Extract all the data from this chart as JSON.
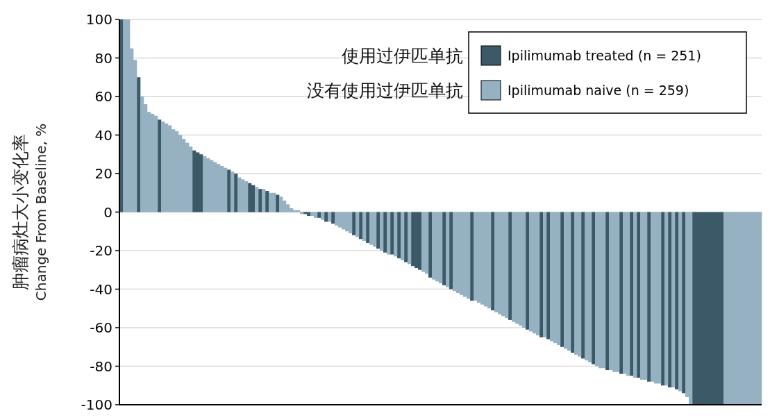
{
  "chart_data": {
    "type": "bar",
    "ylabel": "肿瘤病灶大小变化率\nChange From Baseline, %",
    "categories": [
      null,
      null,
      null,
      null,
      null,
      null,
      null,
      null,
      null,
      null,
      null,
      null,
      null,
      null,
      null,
      null,
      null,
      null,
      null,
      null,
      null,
      null,
      null,
      null,
      null,
      null,
      null,
      null,
      null,
      null,
      null,
      null,
      null,
      null,
      null,
      null,
      null,
      null,
      null,
      null,
      null,
      null,
      null,
      null,
      null,
      null,
      null,
      null,
      null,
      null,
      null,
      null,
      null,
      null,
      null,
      null,
      null,
      null,
      null,
      null,
      null,
      null,
      null,
      null,
      null,
      null,
      null,
      null,
      null,
      null,
      null,
      null,
      null,
      null,
      null,
      null,
      null,
      null,
      null,
      null,
      null,
      null,
      null,
      null,
      null,
      null,
      null,
      null,
      null,
      null,
      null,
      null,
      null,
      null,
      null,
      null,
      null,
      null,
      null,
      null,
      null,
      null,
      null,
      null,
      null,
      null,
      null,
      null,
      null,
      null,
      null,
      null,
      null,
      null,
      null,
      null,
      null,
      null,
      null,
      null,
      null,
      null,
      null,
      null,
      null,
      null,
      null,
      null,
      null,
      null,
      null,
      null,
      null,
      null,
      null,
      null,
      null,
      null,
      null,
      null,
      null,
      null,
      null,
      null,
      null,
      null,
      null,
      null,
      null,
      null,
      null,
      null,
      null,
      null,
      null,
      null,
      null,
      null,
      null,
      null,
      null,
      null,
      null,
      null,
      null,
      null,
      null,
      null,
      null,
      null,
      null,
      null,
      null,
      null,
      null,
      null,
      null,
      null,
      null,
      null,
      null,
      null,
      null,
      null,
      null
    ],
    "series": [
      {
        "name": "Ipilimumab treated (n = 251)",
        "color": "#3b5966",
        "values": [
          100,
          null,
          null,
          null,
          null,
          70,
          null,
          null,
          null,
          null,
          null,
          48,
          null,
          null,
          null,
          null,
          null,
          null,
          null,
          null,
          null,
          32,
          31,
          30,
          null,
          null,
          null,
          null,
          null,
          null,
          null,
          22,
          null,
          20,
          null,
          null,
          null,
          15,
          14,
          null,
          12,
          null,
          11,
          null,
          null,
          9,
          null,
          null,
          null,
          null,
          null,
          null,
          null,
          -1,
          -2,
          null,
          null,
          -3,
          null,
          -5,
          null,
          -6,
          null,
          null,
          null,
          null,
          null,
          -12,
          null,
          -14,
          null,
          -16,
          null,
          null,
          -19,
          null,
          -21,
          null,
          -22,
          null,
          -24,
          null,
          -26,
          null,
          -28,
          -29,
          -30,
          null,
          null,
          -34,
          null,
          null,
          null,
          -38,
          null,
          -40,
          null,
          null,
          null,
          null,
          null,
          -46,
          null,
          null,
          null,
          null,
          null,
          -51,
          null,
          null,
          null,
          null,
          -56,
          null,
          null,
          null,
          null,
          -61,
          null,
          null,
          null,
          -65,
          null,
          -66,
          null,
          null,
          null,
          -70,
          null,
          null,
          -73,
          null,
          null,
          -76,
          null,
          null,
          -79,
          null,
          null,
          null,
          -82,
          null,
          null,
          null,
          -84,
          null,
          null,
          -85,
          null,
          -86,
          null,
          null,
          -88,
          null,
          null,
          null,
          -90,
          null,
          -91,
          null,
          -92,
          null,
          -94,
          null,
          null,
          -100,
          -100,
          -100,
          -100,
          -100,
          -100,
          -100,
          -100,
          -100,
          null,
          null,
          null,
          null,
          null,
          null,
          null,
          null,
          null,
          null,
          null
        ]
      },
      {
        "name": "Ipilimumab naive (n = 259)",
        "color": "#96b2c2",
        "values": [
          null,
          100,
          100,
          85,
          79,
          null,
          60,
          56,
          52,
          51,
          50,
          null,
          47,
          46,
          45,
          43,
          42,
          40,
          38,
          36,
          34,
          null,
          null,
          null,
          29,
          28,
          27,
          26,
          25,
          24,
          23,
          null,
          21,
          null,
          18,
          17,
          16,
          null,
          null,
          13,
          null,
          12,
          null,
          10,
          10,
          null,
          8,
          6,
          4,
          2,
          1,
          1,
          -1,
          null,
          null,
          -2,
          -3,
          null,
          -4,
          null,
          -5,
          null,
          -7,
          -8,
          -9,
          -10,
          -11,
          null,
          -13,
          null,
          -15,
          null,
          -17,
          -18,
          null,
          -20,
          null,
          -22,
          null,
          -23,
          null,
          -25,
          null,
          -27,
          null,
          null,
          null,
          -31,
          -32,
          null,
          -35,
          -36,
          -37,
          null,
          -39,
          null,
          -41,
          -42,
          -43,
          -44,
          -45,
          null,
          -46,
          -47,
          -48,
          -49,
          -50,
          null,
          -52,
          -53,
          -54,
          -55,
          null,
          -57,
          -58,
          -59,
          -60,
          null,
          -62,
          -63,
          -64,
          null,
          -65,
          null,
          -67,
          -68,
          -69,
          null,
          -71,
          -72,
          null,
          -74,
          -75,
          null,
          -77,
          -78,
          null,
          -80,
          -81,
          -81,
          null,
          -82,
          -83,
          -83,
          null,
          -84,
          -85,
          null,
          -86,
          null,
          -87,
          -87,
          null,
          -88,
          -89,
          -89,
          null,
          -90,
          null,
          -91,
          null,
          -93,
          null,
          -96,
          -100,
          null,
          null,
          null,
          null,
          null,
          null,
          null,
          null,
          null,
          -100,
          -100,
          -100,
          -100,
          -100,
          -100,
          -100,
          -100,
          -100,
          -100,
          -100
        ]
      }
    ],
    "ylim": [
      -100,
      100
    ],
    "yticks": [
      -100,
      -80,
      -60,
      -40,
      -20,
      0,
      20,
      40,
      60,
      80,
      100
    ],
    "grid": "y",
    "tick_labels": "y",
    "legend": "top right",
    "annotations": [
      "使用过伊匹单抗",
      "没有使用过伊匹单抗"
    ]
  }
}
